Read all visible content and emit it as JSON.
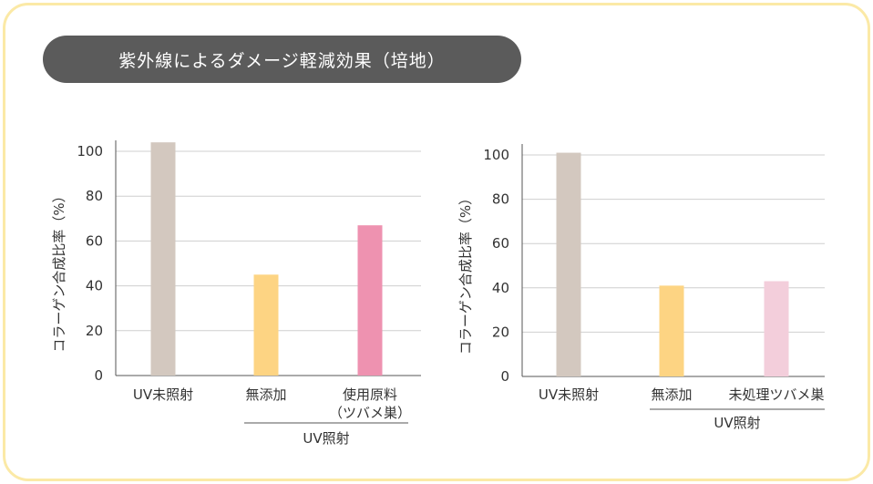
{
  "title": "紫外線によるダメージ軽減効果（培地）",
  "colors": {
    "frame": "#fbe9a6",
    "title_bg": "#5b5b5b",
    "grid": "#cfcfcf",
    "axis": "#555555",
    "control": "#d3c8bf",
    "no_additive": "#fdd483",
    "raw_material": "#ee92b0",
    "untreated_nest": "#f3cedb"
  },
  "chart_data": [
    {
      "type": "bar",
      "ylabel": "コラーゲン合成比率（%）",
      "ylim": [
        0,
        100
      ],
      "yticks": [
        0,
        20,
        40,
        60,
        80,
        100
      ],
      "grid": true,
      "categories": [
        {
          "label": [
            "UV未照射"
          ],
          "value": 104,
          "color": "#d3c8bf"
        },
        {
          "label": [
            "無添加"
          ],
          "value": 45,
          "color": "#fdd483"
        },
        {
          "label": [
            "使用原料",
            "（ツバメ巣）"
          ],
          "value": 67,
          "color": "#ee92b0"
        }
      ],
      "group_label": "UV照射"
    },
    {
      "type": "bar",
      "ylabel": "コラーゲン合成比率（%）",
      "ylim": [
        0,
        100
      ],
      "yticks": [
        0,
        20,
        40,
        60,
        80,
        100
      ],
      "grid": true,
      "categories": [
        {
          "label": [
            "UV未照射"
          ],
          "value": 101,
          "color": "#d3c8bf"
        },
        {
          "label": [
            "無添加"
          ],
          "value": 41,
          "color": "#fdd483"
        },
        {
          "label": [
            "未処理ツバメ巣"
          ],
          "value": 43,
          "color": "#f3cedb"
        }
      ],
      "group_label": "UV照射"
    }
  ]
}
